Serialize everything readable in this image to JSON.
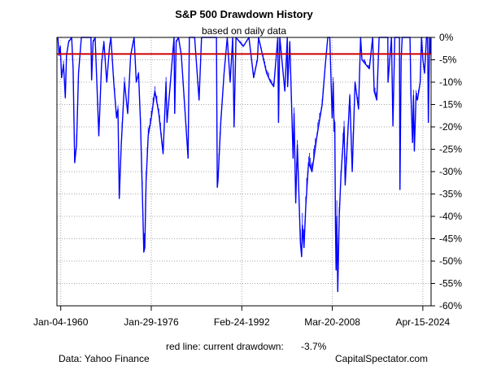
{
  "chart_data": {
    "type": "line",
    "title": "S&P 500 Drawdown History",
    "subtitle": "based on daily data",
    "x_axis": {
      "type": "date",
      "range": [
        "1959-05-01",
        "2025-10-01"
      ],
      "ticks": [
        {
          "date": "1960-01-04",
          "label": "Jan-04-1960"
        },
        {
          "date": "1976-01-29",
          "label": "Jan-29-1976"
        },
        {
          "date": "1992-02-24",
          "label": "Feb-24-1992"
        },
        {
          "date": "2008-03-20",
          "label": "Mar-20-2008"
        },
        {
          "date": "2024-04-15",
          "label": "Apr-15-2024"
        }
      ]
    },
    "y_axis": {
      "position": "right",
      "ylim": [
        -60,
        0
      ],
      "ticks": [
        0,
        -5,
        -10,
        -15,
        -20,
        -25,
        -30,
        -35,
        -40,
        -45,
        -50,
        -55,
        -60
      ],
      "tick_labels": [
        "0%",
        "-5%",
        "-10%",
        "-15%",
        "-20%",
        "-25%",
        "-30%",
        "-35%",
        "-40%",
        "-45%",
        "-50%",
        "-55%",
        "-60%"
      ]
    },
    "grid": true,
    "series": [
      {
        "color": "#0000ff",
        "points": [
          [
            "1959-07-01",
            0
          ],
          [
            "1959-09-15",
            -4
          ],
          [
            "1959-12-01",
            -2
          ],
          [
            "1960-03-01",
            -9
          ],
          [
            "1960-07-01",
            -6
          ],
          [
            "1960-10-25",
            -13.5
          ],
          [
            "1961-01-10",
            -4
          ],
          [
            "1961-06-01",
            -1
          ],
          [
            "1961-12-12",
            0
          ],
          [
            "1962-03-15",
            -7
          ],
          [
            "1962-06-26",
            -28
          ],
          [
            "1962-10-23",
            -24
          ],
          [
            "1963-03-01",
            -8
          ],
          [
            "1963-09-01",
            0
          ],
          [
            "1964-06-01",
            0
          ],
          [
            "1965-05-14",
            0
          ],
          [
            "1965-06-28",
            -9.5
          ],
          [
            "1965-10-01",
            -1
          ],
          [
            "1966-02-09",
            0
          ],
          [
            "1966-06-01",
            -10
          ],
          [
            "1966-10-07",
            -22
          ],
          [
            "1967-04-01",
            -6
          ],
          [
            "1967-09-01",
            -1
          ],
          [
            "1968-03-05",
            -10
          ],
          [
            "1968-09-01",
            -2
          ],
          [
            "1968-11-29",
            0
          ],
          [
            "1969-06-01",
            -10
          ],
          [
            "1969-12-01",
            -18
          ],
          [
            "1970-03-01",
            -16
          ],
          [
            "1970-05-26",
            -36
          ],
          [
            "1970-10-01",
            -24
          ],
          [
            "1971-04-28",
            -10
          ],
          [
            "1971-11-23",
            -17
          ],
          [
            "1972-06-01",
            -4
          ],
          [
            "1973-01-11",
            0
          ],
          [
            "1973-06-01",
            -10
          ],
          [
            "1973-10-26",
            -8
          ],
          [
            "1974-03-01",
            -19
          ],
          [
            "1974-07-01",
            -35
          ],
          [
            "1974-10-03",
            -48
          ],
          [
            "1974-12-06",
            -47
          ],
          [
            "1975-03-01",
            -32
          ],
          [
            "1975-07-15",
            -22
          ],
          [
            "1976-01-29",
            -18
          ],
          [
            "1976-09-21",
            -12
          ],
          [
            "1977-06-01",
            -17
          ],
          [
            "1978-03-06",
            -26
          ],
          [
            "1978-09-12",
            -10
          ],
          [
            "1978-11-14",
            -19
          ],
          [
            "1979-06-01",
            -11
          ],
          [
            "1980-02-13",
            0
          ],
          [
            "1980-03-27",
            -17
          ],
          [
            "1980-07-01",
            -1
          ],
          [
            "1980-11-28",
            0
          ],
          [
            "1981-06-01",
            -4
          ],
          [
            "1982-08-12",
            -27
          ],
          [
            "1982-11-03",
            0
          ],
          [
            "1983-10-10",
            0
          ],
          [
            "1984-07-24",
            -14
          ],
          [
            "1985-01-01",
            0
          ],
          [
            "1986-06-01",
            0
          ],
          [
            "1987-08-25",
            0
          ],
          [
            "1987-10-19",
            -33.5
          ],
          [
            "1987-12-04",
            -32
          ],
          [
            "1988-06-01",
            -19
          ],
          [
            "1989-01-01",
            -8
          ],
          [
            "1989-07-26",
            0
          ],
          [
            "1990-01-30",
            -10
          ],
          [
            "1990-07-16",
            0
          ],
          [
            "1990-10-11",
            -20
          ],
          [
            "1991-02-13",
            0
          ],
          [
            "1992-06-01",
            -2
          ],
          [
            "1993-06-01",
            0
          ],
          [
            "1994-04-04",
            -9
          ],
          [
            "1994-12-01",
            -5
          ],
          [
            "1995-02-13",
            0
          ],
          [
            "1996-07-24",
            -8
          ],
          [
            "1997-04-11",
            -10
          ],
          [
            "1997-10-27",
            -11
          ],
          [
            "1998-07-17",
            0
          ],
          [
            "1998-08-31",
            -19
          ],
          [
            "1998-11-23",
            0
          ],
          [
            "1999-10-15",
            -12
          ],
          [
            "2000-03-24",
            0
          ],
          [
            "2000-04-14",
            -11
          ],
          [
            "2000-09-01",
            -1
          ],
          [
            "2001-04-04",
            -27
          ],
          [
            "2001-06-05",
            -17
          ],
          [
            "2001-09-21",
            -37
          ],
          [
            "2002-01-04",
            -24
          ],
          [
            "2002-07-23",
            -46
          ],
          [
            "2002-10-09",
            -49
          ],
          [
            "2002-11-27",
            -42
          ],
          [
            "2003-03-11",
            -47
          ],
          [
            "2003-07-01",
            -38
          ],
          [
            "2004-01-01",
            -28
          ],
          [
            "2004-08-12",
            -30
          ],
          [
            "2005-07-01",
            -22
          ],
          [
            "2006-06-01",
            -15
          ],
          [
            "2006-12-01",
            -7
          ],
          [
            "2007-05-30",
            0
          ],
          [
            "2007-10-09",
            0
          ],
          [
            "2008-03-10",
            -18
          ],
          [
            "2008-05-19",
            -10
          ],
          [
            "2008-07-15",
            -21
          ],
          [
            "2008-08-28",
            -19
          ],
          [
            "2008-10-10",
            -42
          ],
          [
            "2008-11-20",
            -52
          ],
          [
            "2009-01-06",
            -40
          ],
          [
            "2009-03-09",
            -56.8
          ],
          [
            "2009-06-12",
            -40
          ],
          [
            "2009-10-01",
            -31
          ],
          [
            "2010-04-23",
            -20
          ],
          [
            "2010-07-02",
            -33
          ],
          [
            "2011-04-29",
            -13
          ],
          [
            "2011-10-03",
            -30
          ],
          [
            "2012-04-02",
            -10
          ],
          [
            "2012-11-15",
            -16
          ],
          [
            "2013-03-28",
            0
          ],
          [
            "2013-06-24",
            -5
          ],
          [
            "2014-10-15",
            -7
          ],
          [
            "2015-05-21",
            0
          ],
          [
            "2015-08-25",
            -12
          ],
          [
            "2016-02-11",
            -14
          ],
          [
            "2016-07-11",
            0
          ],
          [
            "2017-06-01",
            0
          ],
          [
            "2018-01-26",
            0
          ],
          [
            "2018-02-08",
            -10
          ],
          [
            "2018-09-20",
            0
          ],
          [
            "2018-12-24",
            -19.8
          ],
          [
            "2019-04-23",
            0
          ],
          [
            "2020-02-19",
            0
          ],
          [
            "2020-03-23",
            -34
          ],
          [
            "2020-06-08",
            -5
          ],
          [
            "2020-08-18",
            0
          ],
          [
            "2021-06-01",
            0
          ],
          [
            "2022-01-03",
            0
          ],
          [
            "2022-03-08",
            -13
          ],
          [
            "2022-06-16",
            -23.5
          ],
          [
            "2022-08-16",
            -13
          ],
          [
            "2022-10-12",
            -25.4
          ],
          [
            "2023-02-02",
            -13
          ],
          [
            "2023-05-01",
            -14
          ],
          [
            "2023-10-27",
            -10
          ],
          [
            "2024-01-19",
            0
          ],
          [
            "2024-04-19",
            -5
          ],
          [
            "2024-08-05",
            -8
          ],
          [
            "2024-12-06",
            0
          ],
          [
            "2025-02-19",
            0
          ],
          [
            "2025-04-08",
            -19
          ],
          [
            "2025-06-27",
            0
          ],
          [
            "2025-07-28",
            -0.5
          ],
          [
            "2025-08-25",
            -3.7
          ]
        ]
      }
    ],
    "reference_line": {
      "value": -3.7,
      "color": "#cc0000"
    },
    "annotation": {
      "label": "red line: current drawdown:",
      "value_label": "-3.7%"
    },
    "source": "Data: Yahoo Finance",
    "credit": "CapitalSpectator.com"
  }
}
